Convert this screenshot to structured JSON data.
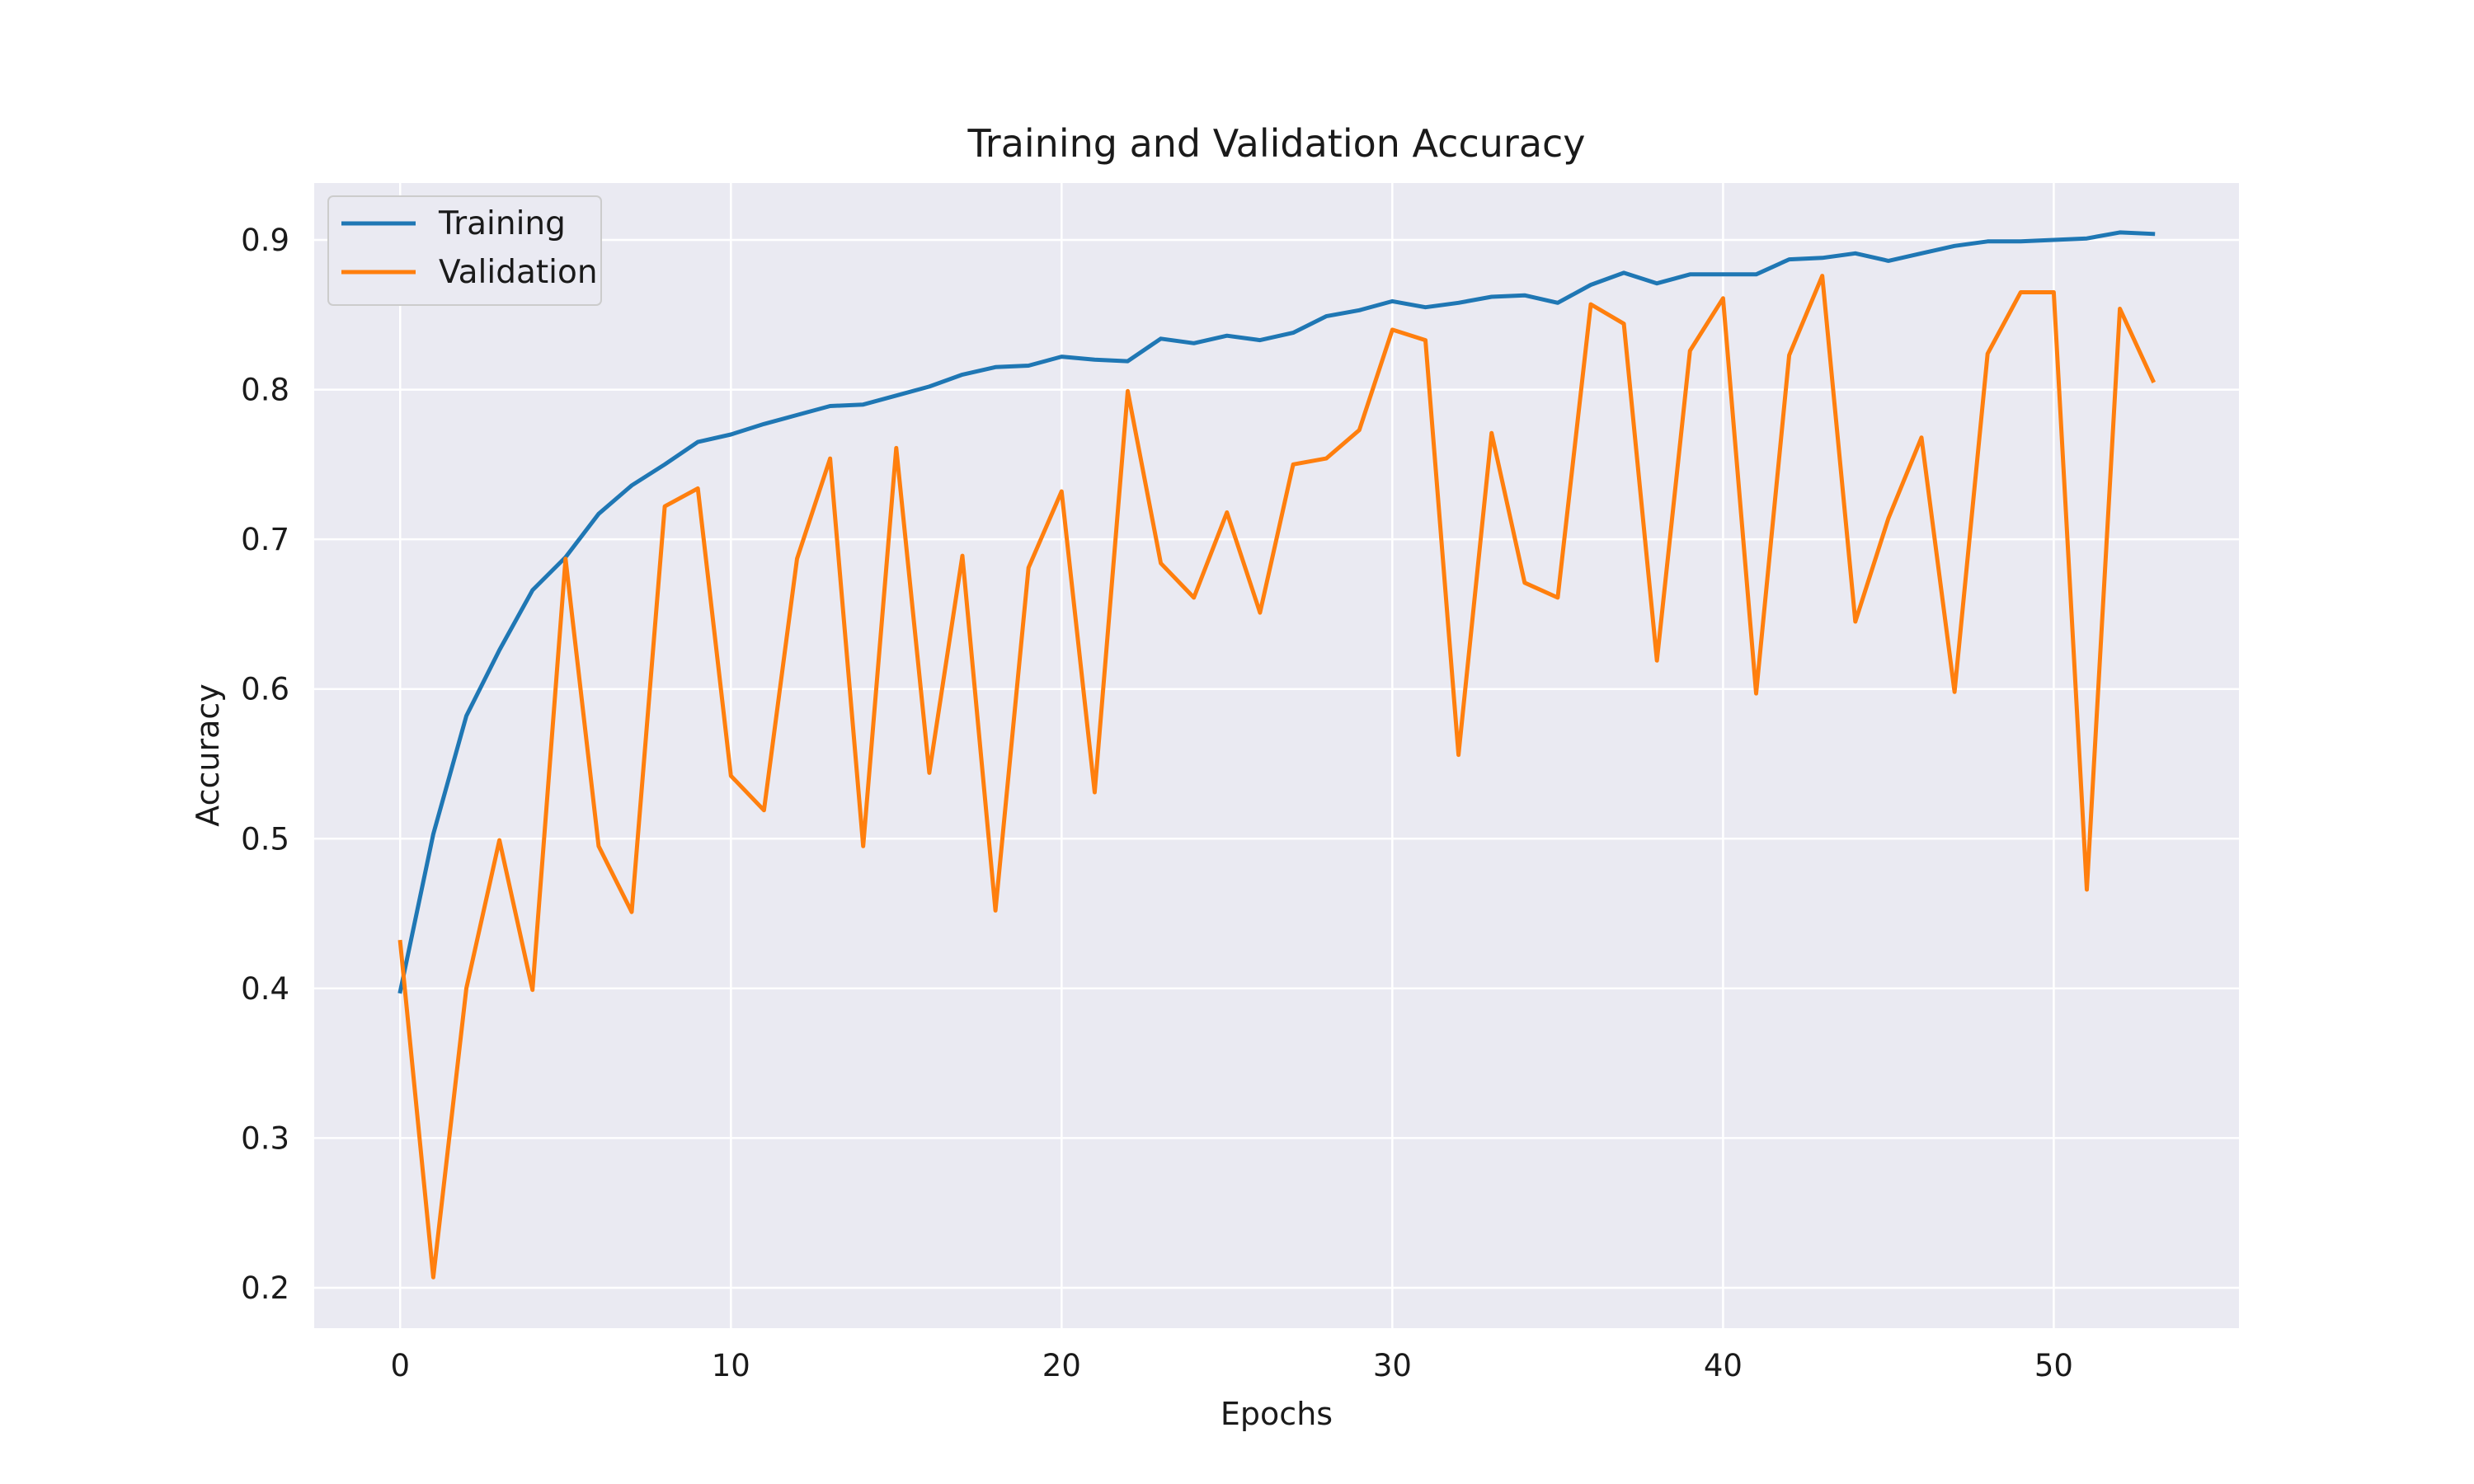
{
  "chart_data": {
    "type": "line",
    "title": "Training and Validation Accuracy",
    "xlabel": "Epochs",
    "ylabel": "Accuracy",
    "xlim": [
      -2.6,
      55.6
    ],
    "ylim": [
      0.173,
      0.938
    ],
    "xticks": [
      0,
      10,
      20,
      30,
      40,
      50
    ],
    "yticks": [
      0.2,
      0.3,
      0.4,
      0.5,
      0.6,
      0.7,
      0.8,
      0.9
    ],
    "xtick_labels": [
      "0",
      "10",
      "20",
      "30",
      "40",
      "50"
    ],
    "ytick_labels": [
      "0.2",
      "0.3",
      "0.4",
      "0.5",
      "0.6",
      "0.7",
      "0.8",
      "0.9"
    ],
    "grid": true,
    "legend_position": "top-left",
    "x": [
      0,
      1,
      2,
      3,
      4,
      5,
      6,
      7,
      8,
      9,
      10,
      11,
      12,
      13,
      14,
      15,
      16,
      17,
      18,
      19,
      20,
      21,
      22,
      23,
      24,
      25,
      26,
      27,
      28,
      29,
      30,
      31,
      32,
      33,
      34,
      35,
      36,
      37,
      38,
      39,
      40,
      41,
      42,
      43,
      44,
      45,
      46,
      47,
      48,
      49,
      50,
      51,
      52,
      53
    ],
    "series": [
      {
        "name": "Training",
        "color": "#1f77b4",
        "values": [
          0.398,
          0.503,
          0.582,
          0.626,
          0.666,
          0.688,
          0.717,
          0.736,
          0.75,
          0.765,
          0.77,
          0.777,
          0.783,
          0.789,
          0.79,
          0.796,
          0.802,
          0.81,
          0.815,
          0.816,
          0.822,
          0.82,
          0.819,
          0.834,
          0.831,
          0.836,
          0.833,
          0.838,
          0.849,
          0.853,
          0.859,
          0.855,
          0.858,
          0.862,
          0.863,
          0.858,
          0.87,
          0.878,
          0.871,
          0.877,
          0.877,
          0.877,
          0.887,
          0.888,
          0.891,
          0.886,
          0.891,
          0.896,
          0.899,
          0.899,
          0.9,
          0.901,
          0.905,
          0.904
        ]
      },
      {
        "name": "Validation",
        "color": "#ff7f0e",
        "values": [
          0.431,
          0.207,
          0.4,
          0.499,
          0.399,
          0.687,
          0.495,
          0.451,
          0.722,
          0.734,
          0.542,
          0.519,
          0.687,
          0.754,
          0.495,
          0.761,
          0.544,
          0.689,
          0.452,
          0.681,
          0.732,
          0.531,
          0.799,
          0.684,
          0.661,
          0.718,
          0.651,
          0.75,
          0.754,
          0.773,
          0.84,
          0.833,
          0.556,
          0.771,
          0.671,
          0.661,
          0.857,
          0.844,
          0.619,
          0.826,
          0.861,
          0.597,
          0.823,
          0.876,
          0.645,
          0.714,
          0.768,
          0.598,
          0.824,
          0.865,
          0.865,
          0.466,
          0.854,
          0.806
        ]
      }
    ]
  }
}
